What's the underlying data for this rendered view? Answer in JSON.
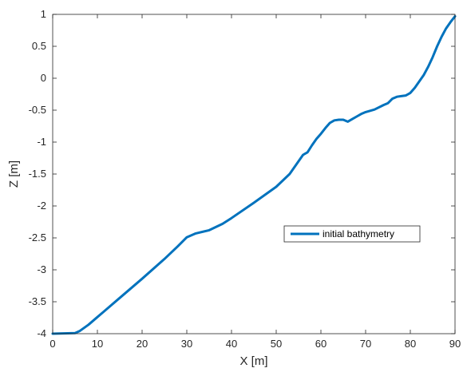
{
  "chart_data": {
    "type": "line",
    "title": "",
    "xlabel": "X [m]",
    "ylabel": "Z [m]",
    "xlim": [
      0,
      90
    ],
    "ylim": [
      -4,
      1
    ],
    "xticks": [
      "0",
      "10",
      "20",
      "30",
      "40",
      "50",
      "60",
      "70",
      "80",
      "90"
    ],
    "yticks": [
      "-4",
      "-3.5",
      "-3",
      "-2.5",
      "-2",
      "-1.5",
      "-1",
      "-0.5",
      "0",
      "0.5",
      "1"
    ],
    "grid": false,
    "legend_position": "center-right",
    "series": [
      {
        "name": "initial bathymetry",
        "color": "#0072BD",
        "x": [
          0,
          5,
          6,
          8,
          10,
          15,
          20,
          25,
          28,
          30,
          32,
          35,
          38,
          40,
          45,
          50,
          53,
          55,
          56,
          57,
          58,
          59,
          60,
          61,
          62,
          63,
          64,
          65,
          66,
          67,
          68,
          69,
          70,
          72,
          74,
          75,
          76,
          77,
          78,
          79,
          80,
          81,
          82,
          83,
          84,
          85,
          86,
          87,
          88,
          89,
          90
        ],
        "y": [
          -4.0,
          -3.99,
          -3.96,
          -3.86,
          -3.74,
          -3.44,
          -3.14,
          -2.83,
          -2.63,
          -2.49,
          -2.43,
          -2.38,
          -2.28,
          -2.19,
          -1.95,
          -1.7,
          -1.5,
          -1.3,
          -1.2,
          -1.16,
          -1.05,
          -0.95,
          -0.87,
          -0.78,
          -0.7,
          -0.66,
          -0.65,
          -0.65,
          -0.68,
          -0.64,
          -0.6,
          -0.56,
          -0.53,
          -0.49,
          -0.42,
          -0.39,
          -0.32,
          -0.29,
          -0.28,
          -0.27,
          -0.23,
          -0.15,
          -0.05,
          0.05,
          0.18,
          0.33,
          0.5,
          0.65,
          0.78,
          0.88,
          0.97
        ]
      }
    ]
  }
}
